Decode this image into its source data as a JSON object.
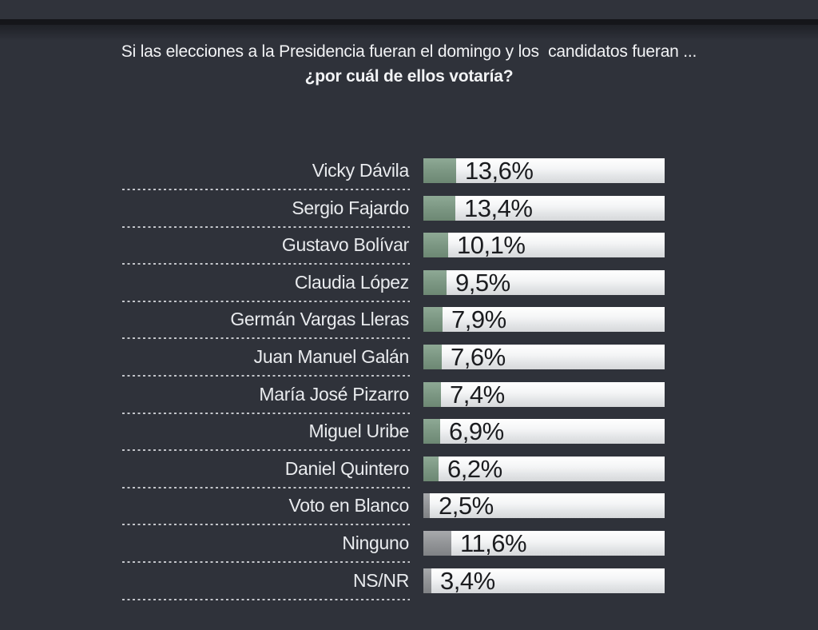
{
  "title": {
    "line1": "Si las elecciones a la Presidencia fueran el domingo y los  candidatos fueran ...",
    "line2": "¿por cuál de ellos votaría?"
  },
  "chart_data": {
    "type": "bar",
    "orientation": "horizontal",
    "title": "Si las elecciones a la Presidencia fueran el domingo y los  candidatos fueran ... ¿por cuál de ellos votaría?",
    "categories": [
      "Vicky Dávila",
      "Sergio Fajardo",
      "Gustavo Bolívar",
      "Claudia López",
      "Germán Vargas Lleras",
      "Juan Manuel Galán",
      "María José Pizarro",
      "Miguel Uribe",
      "Daniel Quintero",
      "Voto en Blanco",
      "Ninguno",
      "NS/NR"
    ],
    "values": [
      13.6,
      13.4,
      10.1,
      9.5,
      7.9,
      7.6,
      7.4,
      6.9,
      6.2,
      2.5,
      11.6,
      3.4
    ],
    "value_labels": [
      "13,6%",
      "13,4%",
      "10,1%",
      "9,5%",
      "7,9%",
      "7,6%",
      "7,4%",
      "6,9%",
      "6,2%",
      "2,5%",
      "11,6%",
      "3,4%"
    ],
    "groups": [
      "candidate",
      "candidate",
      "candidate",
      "candidate",
      "candidate",
      "candidate",
      "candidate",
      "candidate",
      "candidate",
      "other",
      "other",
      "other"
    ],
    "xlim": [
      0,
      100
    ],
    "legend": "none",
    "grid": false,
    "colors": {
      "candidate_fill": "#7d9884",
      "other_fill": "#939598",
      "track": "#eceeef",
      "background": "#2f323a",
      "label_text": "#e9ebee",
      "value_text": "#1b1c1f"
    }
  }
}
